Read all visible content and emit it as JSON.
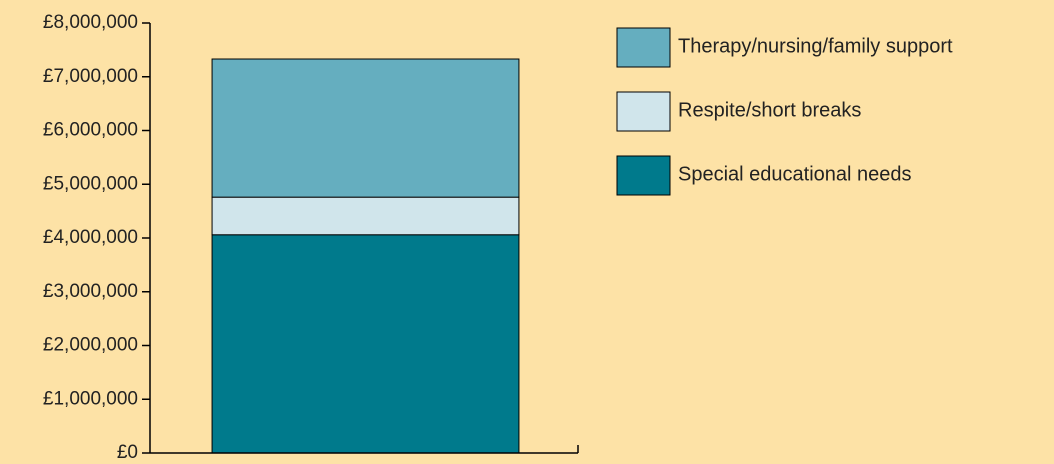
{
  "chart_data": {
    "type": "stacked_bar",
    "categories": [
      null
    ],
    "series": [
      {
        "name": "Special educational needs",
        "color": "#007a8c",
        "values": [
          4060000
        ]
      },
      {
        "name": "Respite/short breaks",
        "color": "#d0e5eb",
        "values": [
          700000
        ]
      },
      {
        "name": "Therapy/nursing/family support",
        "color": "#65aebf",
        "values": [
          2570000
        ]
      }
    ],
    "ylim": [
      0,
      8000000
    ],
    "yticks": [
      {
        "value": 0,
        "label": "£0"
      },
      {
        "value": 1000000,
        "label": "£1,000,000"
      },
      {
        "value": 2000000,
        "label": "£2,000,000"
      },
      {
        "value": 3000000,
        "label": "£3,000,000"
      },
      {
        "value": 4000000,
        "label": "£4,000,000"
      },
      {
        "value": 5000000,
        "label": "£5,000,000"
      },
      {
        "value": 6000000,
        "label": "£6,000,000"
      },
      {
        "value": 7000000,
        "label": "£7,000,000"
      },
      {
        "value": 8000000,
        "label": "£8,000,000"
      }
    ],
    "grid": false,
    "legend": "right"
  }
}
